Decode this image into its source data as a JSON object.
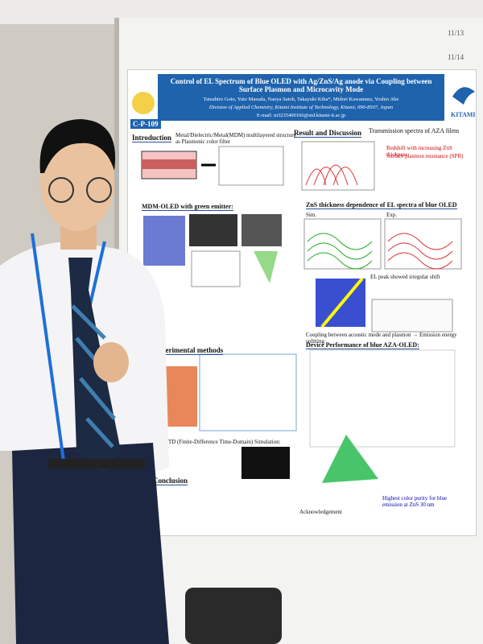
{
  "board_labels": [
    "11/13",
    "11/14"
  ],
  "poster": {
    "id": "C-P-109",
    "logo": "KITAMI",
    "title": "Control of EL Spectrum of Blue OLED with Ag/ZnS/Ag anode via Coupling between Surface Plasmon and Microcavity Mode",
    "authors": "Tatsuhiro Goto, Yuto Masuda, Naoya Satoh, Takayuki Kiba*, Midori Kawamura, Yoshio Abe",
    "affiliation": "Division of Applied Chemistry, Kitami Institute of Technology, Kitami, 090-8507, Japan",
    "email": "E-mail: m3235400166@std.kitami-it.ac.jp",
    "intro_heading": "Introduction",
    "intro_sub": "Metal/Dielectric/Metal(MDM) multilayered structure as Plasmonic color filter",
    "mdm_heading": "MDM-OLED with green emitter:",
    "results_heading": "Result and Discussion",
    "transmission_heading": "Transmission spectra of AZA films",
    "redshift": "Redshift with increasing ZnS thickness",
    "spr": "Surface plasmon resonance (SPR)",
    "el_heading": "ZnS thickness dependence of EL spectra of blue OLED",
    "sim": "Sim.",
    "exp": "Exp.",
    "el_note": "EL peak showed irregular shift",
    "coupling": "Coupling between acoustic mode and plasmon → Emission energy splitting",
    "device_heading": "Device Performance of blue AZA-OLED:",
    "methods_heading": "Experimental methods",
    "fdtd_heading": "FDTD (Finite-Difference Time-Domain) Simulation:",
    "conclusion_heading": "Conclusion",
    "highest": "Highest color purity for blue emission at ZnS 30 nm",
    "ack_heading": "Acknowledgement"
  }
}
